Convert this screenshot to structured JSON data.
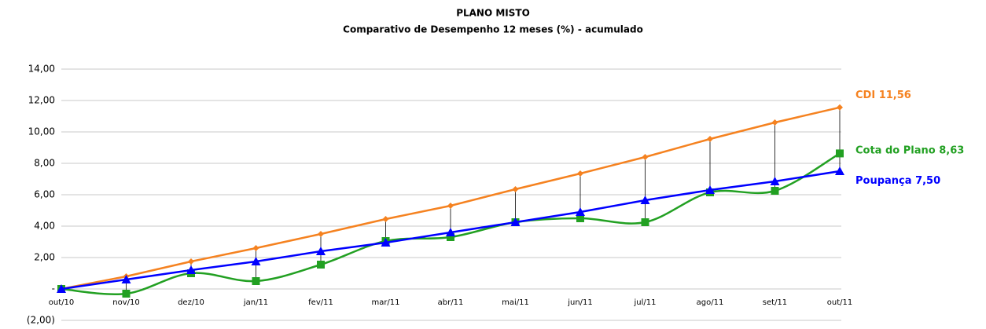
{
  "chart_data": {
    "type": "line",
    "title": "PLANO MISTO",
    "subtitle": "Comparativo de Desempenho 12 meses (%) - acumulado",
    "categories": [
      "out/10",
      "nov/10",
      "dez/10",
      "jan/11",
      "fev/11",
      "mar/11",
      "abr/11",
      "mai/11",
      "jun/11",
      "jul/11",
      "ago/11",
      "set/11",
      "out/11"
    ],
    "series": [
      {
        "name": "CDI",
        "color": "#f58220",
        "marker": "diamond",
        "smooth": false,
        "values": [
          0,
          0.8,
          1.75,
          2.6,
          3.5,
          4.45,
          5.3,
          6.35,
          7.35,
          8.4,
          9.55,
          10.6,
          11.56
        ],
        "value_labels": [
          null,
          null,
          null,
          null,
          null,
          null,
          null,
          null,
          null,
          null,
          null,
          null,
          "11,56"
        ]
      },
      {
        "name": "Cota do Plano",
        "color": "#22a022",
        "marker": "square",
        "smooth": true,
        "values": [
          0,
          -0.3,
          1.0,
          0.5,
          1.55,
          3.05,
          3.3,
          4.25,
          4.5,
          4.25,
          6.15,
          6.25,
          8.63
        ],
        "value_labels": [
          null,
          null,
          null,
          null,
          null,
          null,
          null,
          null,
          null,
          null,
          null,
          null,
          "8,63"
        ]
      },
      {
        "name": "Poupança",
        "color": "#0000ff",
        "marker": "triangle",
        "smooth": false,
        "values": [
          0,
          0.6,
          1.2,
          1.75,
          2.4,
          2.95,
          3.6,
          4.25,
          4.9,
          5.65,
          6.3,
          6.85,
          7.5
        ],
        "value_labels": [
          null,
          null,
          null,
          null,
          null,
          null,
          null,
          null,
          null,
          null,
          null,
          null,
          "7,50"
        ]
      }
    ],
    "ylim": [
      -2,
      14
    ],
    "yticks": [
      {
        "value": -2,
        "label": "(2,00)"
      },
      {
        "value": 0,
        "label": "-"
      },
      {
        "value": 2,
        "label": "2,00"
      },
      {
        "value": 4,
        "label": "4,00"
      },
      {
        "value": 6,
        "label": "6,00"
      },
      {
        "value": 8,
        "label": "8,00"
      },
      {
        "value": 10,
        "label": "10,00"
      },
      {
        "value": 12,
        "label": "12,00"
      },
      {
        "value": 14,
        "label": "14,00"
      }
    ],
    "grid": true,
    "high_low_lines": true
  }
}
